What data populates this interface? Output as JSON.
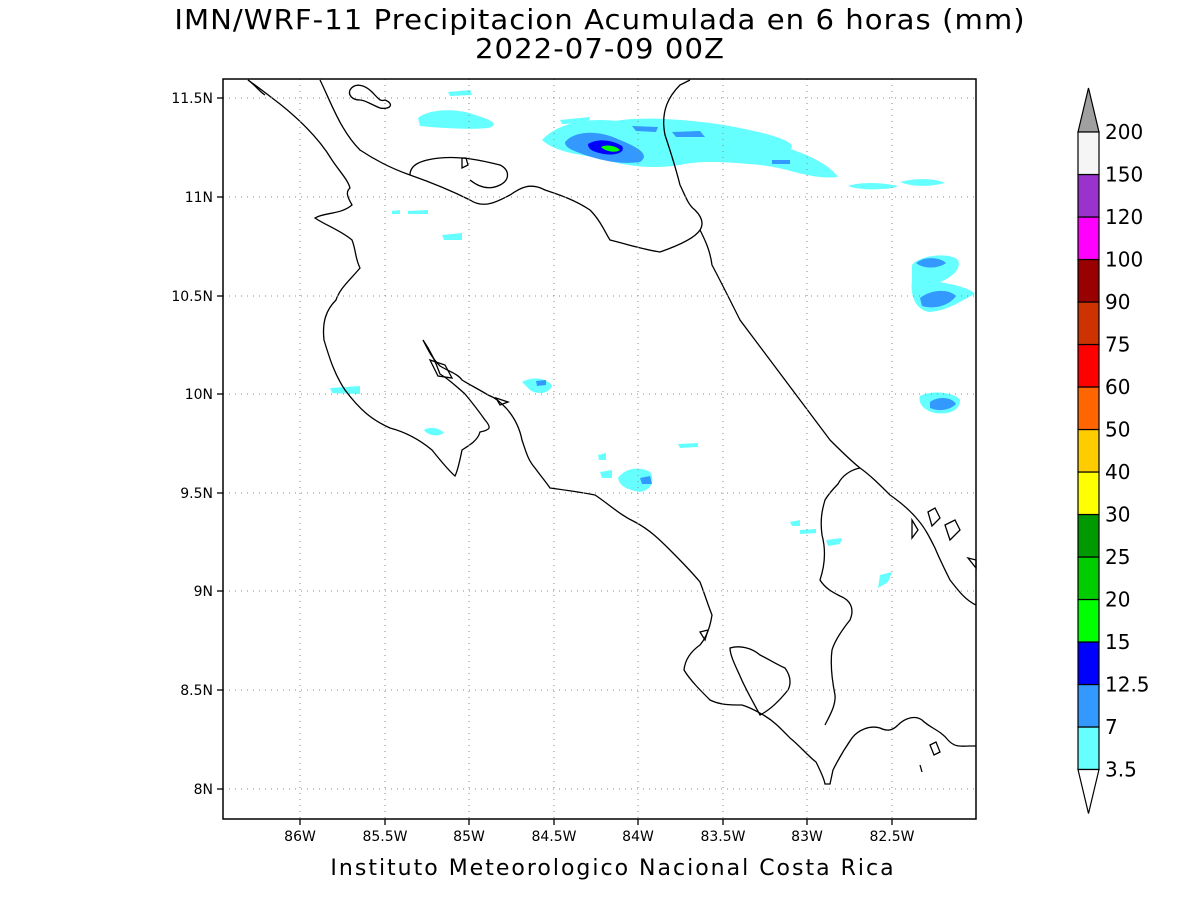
{
  "title": {
    "line1": "IMN/WRF-11 Precipitacion Acumulada en 6 horas (mm)",
    "line2": "2022-07-09 00Z"
  },
  "credit": "Instituto Meteorologico Nacional Costa Rica",
  "axes": {
    "lon_ticks": [
      "86W",
      "85.5W",
      "85W",
      "84.5W",
      "84W",
      "83.5W",
      "83W",
      "82.5W"
    ],
    "lat_ticks": [
      "11.5N",
      "11N",
      "10.5N",
      "10N",
      "9.5N",
      "9N",
      "8.5N",
      "8N"
    ]
  },
  "colorbar": {
    "levels": [
      "3.5",
      "7",
      "12.5",
      "15",
      "20",
      "25",
      "30",
      "40",
      "50",
      "60",
      "75",
      "90",
      "100",
      "120",
      "150",
      "200"
    ],
    "colors": [
      "#66ffff",
      "#3399ff",
      "#0000ff",
      "#00ff00",
      "#00cc00",
      "#009900",
      "#ffff00",
      "#ffcc00",
      "#ff6600",
      "#ff0000",
      "#cc3300",
      "#990000",
      "#ff00ff",
      "#9933cc",
      "#f5f5f5"
    ],
    "below_color": "#ffffff",
    "above_color": "#a0a0a0"
  },
  "colors": {
    "light_cyan": "#66ffff",
    "medium_blue": "#3399ff",
    "dark_blue": "#0000ff",
    "green": "#00ff00"
  }
}
